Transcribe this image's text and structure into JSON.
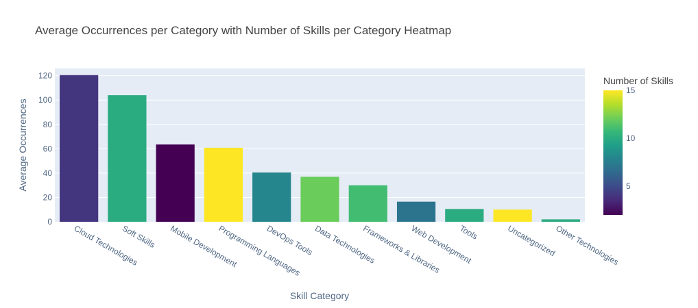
{
  "chart_data": {
    "type": "bar",
    "title": "Average Occurrences per Category with Number of Skills per Category Heatmap",
    "xlabel": "Skill Category",
    "ylabel": "Average Occurrences",
    "ylim": [
      0,
      126
    ],
    "yticks": [
      0,
      20,
      40,
      60,
      80,
      100,
      120
    ],
    "grid": true,
    "categories": [
      "Cloud Technologies",
      "Soft Skills",
      "Mobile Development",
      "Programming Languages",
      "DevOps Tools",
      "Data Technologies",
      "Frameworks & Libraries",
      "Web Development",
      "Tools",
      "Uncategorized",
      "Other Technologies"
    ],
    "values": [
      120.5,
      104,
      63.5,
      60.8,
      40.5,
      37,
      30,
      16.5,
      10.5,
      10,
      2
    ],
    "color_values": [
      4,
      10,
      2,
      15,
      8,
      12,
      11,
      7,
      10,
      15,
      10
    ],
    "colorbar": {
      "title": "Number of Skills",
      "range": [
        2,
        15
      ],
      "ticks": [
        5,
        10,
        15
      ],
      "colorscale": "Viridis"
    }
  },
  "colors": {
    "plot_bg": "#e5ecf6",
    "grid": "#ffffff",
    "viridis": [
      "#440154",
      "#482878",
      "#3e4989",
      "#31688e",
      "#26828e",
      "#1f9e89",
      "#35b779",
      "#6ece58",
      "#b5de2b",
      "#fde725"
    ]
  }
}
